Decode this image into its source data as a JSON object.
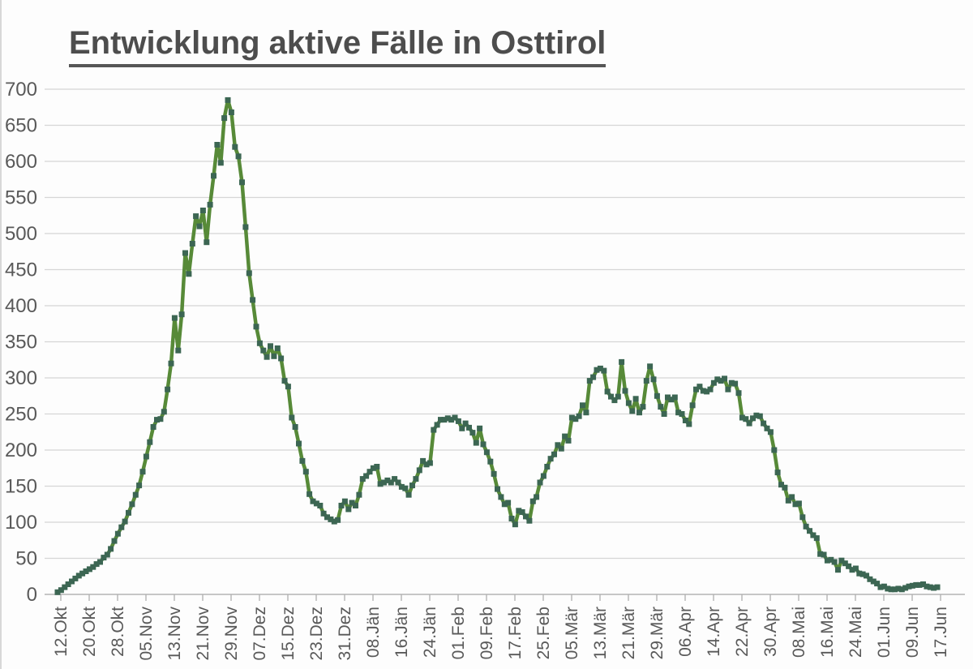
{
  "title": "Entwicklung aktive Fälle in Osttirol",
  "colors": {
    "line": "#578a38",
    "marker": "#3c6653",
    "grid": "#d6d6d6",
    "axis": "#b3b3b3",
    "label_text": "#595959",
    "title_text": "#4d4d4d"
  },
  "chart_data": {
    "type": "line",
    "title": "Entwicklung aktive Fälle in Osttirol",
    "xlabel": "",
    "ylabel": "",
    "ylim": [
      0,
      700
    ],
    "y_tick_step": 50,
    "grid": "horizontal",
    "legend": "none",
    "marker": "square",
    "x_tick_interval_days": 8,
    "x_tick_labels": [
      "12.Okt",
      "20.Okt",
      "28.Okt",
      "05.Nov",
      "13.Nov",
      "21.Nov",
      "29.Nov",
      "07.Dez",
      "15.Dez",
      "23.Dez",
      "31.Dez",
      "08.Jän",
      "16.Jän",
      "24.Jän",
      "01.Feb",
      "09.Feb",
      "17.Feb",
      "25.Feb",
      "05.Mär",
      "13.Mär",
      "21.Mär",
      "29.Mär",
      "06.Apr",
      "14.Apr",
      "22.Apr",
      "30.Apr",
      "08.Mai",
      "16.Mai",
      "24.Mai",
      "01.Jun",
      "09.Jun",
      "17.Jun"
    ],
    "series": [
      {
        "name": "aktive Fälle",
        "values": [
          3,
          6,
          10,
          14,
          18,
          22,
          26,
          29,
          32,
          35,
          38,
          42,
          45,
          51,
          55,
          63,
          74,
          84,
          93,
          101,
          113,
          125,
          138,
          151,
          170,
          191,
          211,
          232,
          242,
          243,
          253,
          284,
          320,
          383,
          338,
          388,
          473,
          444,
          486,
          524,
          510,
          532,
          488,
          540,
          580,
          623,
          598,
          660,
          685,
          668,
          620,
          607,
          571,
          509,
          445,
          408,
          371,
          348,
          338,
          329,
          344,
          330,
          341,
          327,
          296,
          288,
          245,
          232,
          209,
          185,
          170,
          139,
          129,
          126,
          123,
          112,
          107,
          104,
          101,
          103,
          123,
          129,
          118,
          127,
          123,
          138,
          160,
          164,
          170,
          175,
          177,
          153,
          155,
          158,
          155,
          160,
          155,
          149,
          147,
          138,
          151,
          160,
          172,
          185,
          180,
          182,
          228,
          235,
          242,
          242,
          244,
          242,
          245,
          240,
          230,
          237,
          231,
          224,
          210,
          230,
          208,
          197,
          184,
          167,
          146,
          135,
          125,
          127,
          105,
          97,
          116,
          114,
          108,
          102,
          129,
          135,
          155,
          164,
          177,
          188,
          194,
          207,
          202,
          219,
          213,
          245,
          243,
          247,
          262,
          252,
          296,
          301,
          311,
          313,
          310,
          281,
          274,
          269,
          274,
          322,
          282,
          265,
          254,
          271,
          252,
          260,
          296,
          316,
          298,
          275,
          260,
          250,
          273,
          270,
          273,
          252,
          250,
          241,
          236,
          262,
          284,
          288,
          282,
          281,
          284,
          293,
          298,
          296,
          299,
          284,
          293,
          292,
          279,
          245,
          243,
          237,
          244,
          248,
          247,
          237,
          230,
          225,
          200,
          169,
          152,
          148,
          130,
          135,
          125,
          126,
          107,
          94,
          88,
          82,
          78,
          56,
          55,
          47,
          48,
          45,
          34,
          47,
          43,
          39,
          34,
          36,
          29,
          28,
          26,
          21,
          18,
          15,
          10,
          11,
          8,
          7,
          7,
          8,
          7,
          9,
          11,
          12,
          13,
          13,
          14,
          11,
          10,
          9,
          10
        ]
      }
    ]
  }
}
